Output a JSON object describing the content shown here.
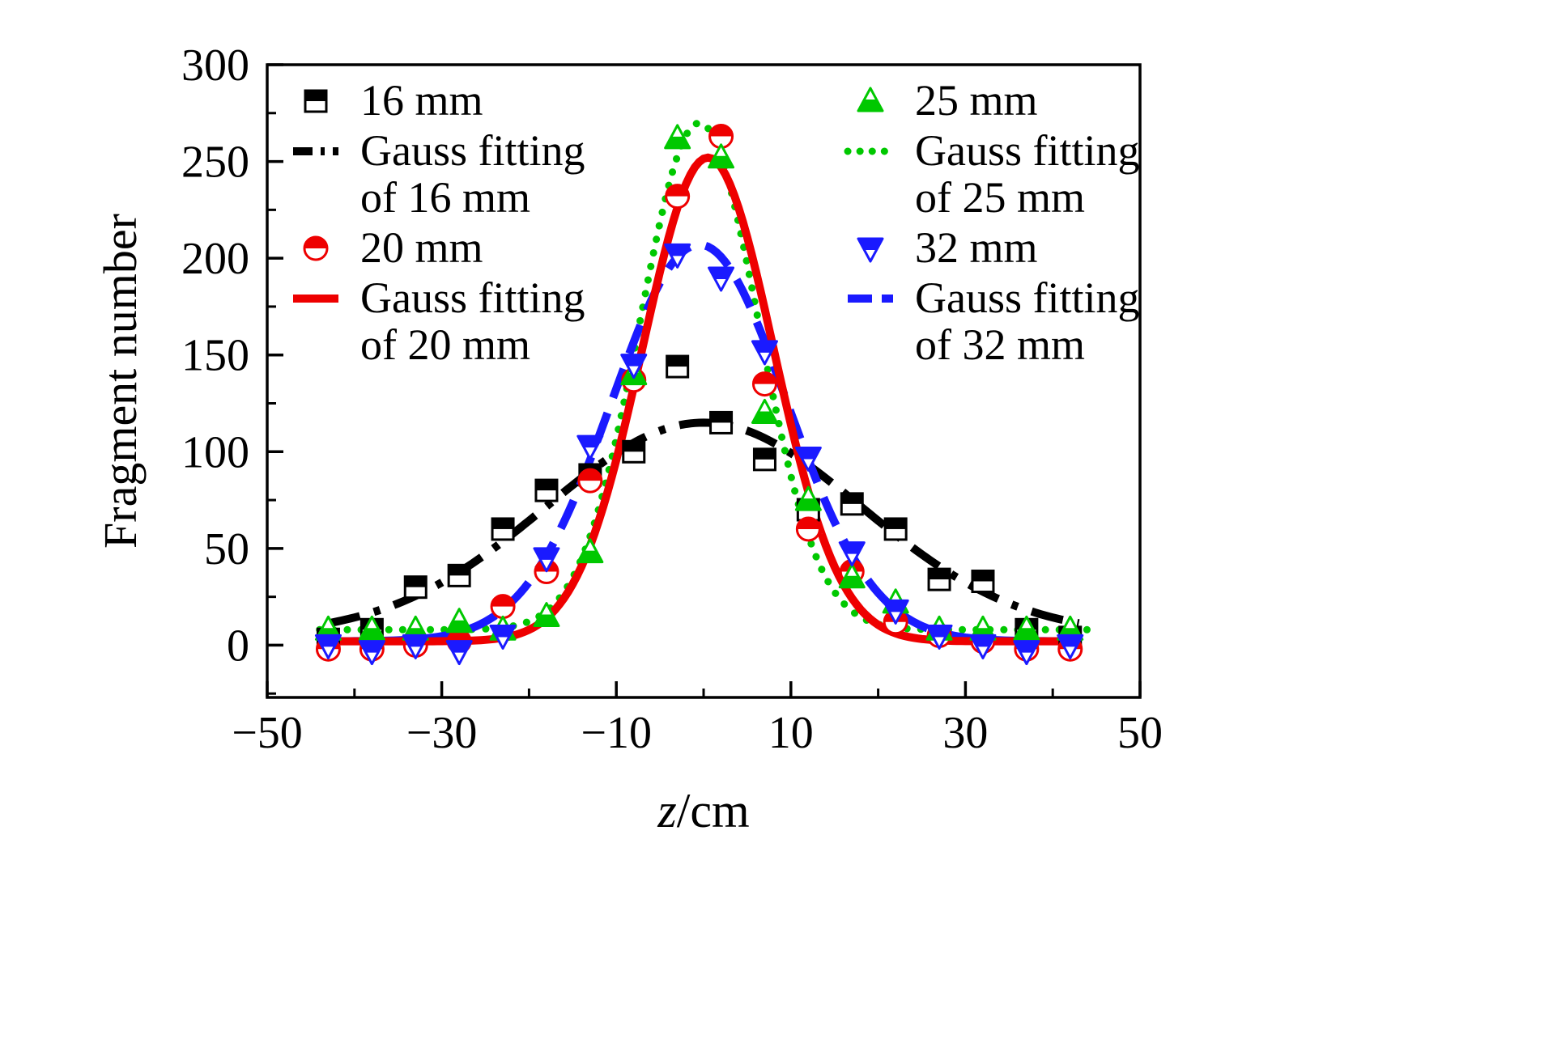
{
  "figure": {
    "background": "#ffffff"
  },
  "chart_data": {
    "type": "scatter",
    "title": "",
    "xlabel_italic": "z",
    "xlabel_rest": "/cm",
    "ylabel": "Fragment number",
    "xlim": [
      -50,
      50
    ],
    "ylim": [
      -27,
      300
    ],
    "grid": false,
    "legend_position": "top-inside-two-columns",
    "x_major_ticks": [
      -50,
      -30,
      -10,
      10,
      30,
      50
    ],
    "x_major_labels": [
      "−50",
      "−30",
      "−10",
      "10",
      "30",
      "50"
    ],
    "x_minor_ticks": [
      -40,
      -20,
      0,
      20,
      40
    ],
    "y_major_ticks": [
      0,
      50,
      100,
      150,
      200,
      250,
      300
    ],
    "y_major_labels": [
      "0",
      "50",
      "100",
      "150",
      "200",
      "250",
      "300"
    ],
    "y_minor_ticks": [
      -25,
      25,
      75,
      125,
      175,
      225,
      275
    ],
    "x": [
      -43,
      -38,
      -33,
      -28,
      -23,
      -18,
      -13,
      -8,
      -3,
      2,
      7,
      12,
      17,
      22,
      27,
      32,
      37,
      42
    ],
    "series": [
      {
        "name": "16 mm",
        "marker": "square",
        "color": "#000000",
        "values": [
          3,
          8,
          30,
          36,
          60,
          80,
          88,
          100,
          144,
          115,
          96,
          70,
          73,
          60,
          34,
          33,
          8,
          4
        ]
      },
      {
        "name": "20 mm",
        "marker": "circle",
        "color": "#ee0000",
        "values": [
          -2,
          -2,
          0,
          2,
          20,
          38,
          85,
          137,
          232,
          263,
          135,
          60,
          38,
          12,
          5,
          2,
          -2,
          -2
        ]
      },
      {
        "name": "25 mm",
        "marker": "triangle-up",
        "color": "#00c800",
        "values": [
          8,
          8,
          8,
          12,
          8,
          15,
          48,
          140,
          262,
          252,
          120,
          75,
          35,
          22,
          8,
          8,
          8,
          8
        ]
      },
      {
        "name": "32 mm",
        "marker": "triangle-down",
        "color": "#1a1aff",
        "values": [
          0,
          -3,
          0,
          -3,
          5,
          45,
          103,
          145,
          202,
          190,
          152,
          97,
          48,
          18,
          5,
          0,
          -3,
          0
        ]
      }
    ],
    "fits": [
      {
        "name": "Gauss fitting of 16 mm",
        "color": "#000000",
        "style": "dashdot",
        "baseline": 5,
        "amplitude": 110,
        "center": 0,
        "sigma": 18,
        "range": [
          -43,
          43
        ]
      },
      {
        "name": "Gauss fitting of 25 mm",
        "color": "#00c800",
        "style": "dotted",
        "baseline": 8,
        "amplitude": 262,
        "center": -0.5,
        "sigma": 6.8,
        "range": [
          -44,
          44
        ]
      },
      {
        "name": "Gauss fitting of 32 mm",
        "color": "#1a1aff",
        "style": "dashed",
        "baseline": 2,
        "amplitude": 205,
        "center": -0.5,
        "sigma": 10,
        "range": [
          -43,
          43
        ]
      },
      {
        "name": "Gauss fitting of 20 mm",
        "color": "#ee0000",
        "style": "solid",
        "baseline": 2,
        "amplitude": 250,
        "center": 0.5,
        "sigma": 7.5,
        "range": [
          -43,
          43
        ]
      }
    ],
    "legend": {
      "columns": [
        {
          "entries": [
            {
              "kind": "marker",
              "marker": "square",
              "color": "#000000",
              "lines": [
                "16 mm"
              ]
            },
            {
              "kind": "line",
              "style": "dashdot",
              "color": "#000000",
              "lines": [
                "Gauss fitting",
                "of 16 mm"
              ]
            },
            {
              "kind": "marker",
              "marker": "circle",
              "color": "#ee0000",
              "lines": [
                "20 mm"
              ]
            },
            {
              "kind": "line",
              "style": "solid",
              "color": "#ee0000",
              "lines": [
                "Gauss fitting",
                "of 20 mm"
              ]
            }
          ]
        },
        {
          "entries": [
            {
              "kind": "marker",
              "marker": "triangle-up",
              "color": "#00c800",
              "lines": [
                "25 mm"
              ]
            },
            {
              "kind": "line",
              "style": "dotted",
              "color": "#00c800",
              "lines": [
                "Gauss fitting",
                "of 25 mm"
              ]
            },
            {
              "kind": "marker",
              "marker": "triangle-down",
              "color": "#1a1aff",
              "lines": [
                "32 mm"
              ]
            },
            {
              "kind": "line",
              "style": "dashed",
              "color": "#1a1aff",
              "lines": [
                "Gauss fitting",
                "of 32 mm"
              ]
            }
          ]
        }
      ]
    }
  }
}
